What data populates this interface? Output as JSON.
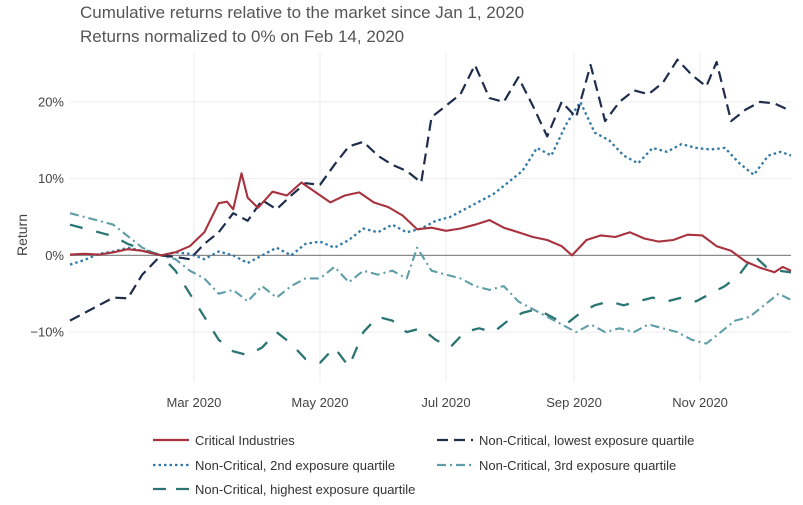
{
  "chart_data": {
    "type": "line",
    "title": "Cumulative returns relative to the market since Jan 1, 2020",
    "subtitle": "Returns normalized to 0% on Feb 14, 2020",
    "xlabel": "",
    "ylabel": "Return",
    "x_range": [
      "2020-01-01",
      "2020-12-15"
    ],
    "y_range": [
      -0.165,
      0.265
    ],
    "x_ticks": [
      {
        "date": "2020-03-01",
        "label": "Mar 2020"
      },
      {
        "date": "2020-05-01",
        "label": "May 2020"
      },
      {
        "date": "2020-07-01",
        "label": "Jul 2020"
      },
      {
        "date": "2020-09-01",
        "label": "Sep 2020"
      },
      {
        "date": "2020-11-01",
        "label": "Nov 2020"
      }
    ],
    "y_ticks": [
      {
        "value": -0.1,
        "label": "−10%"
      },
      {
        "value": 0,
        "label": "0%"
      },
      {
        "value": 0.1,
        "label": "10%"
      },
      {
        "value": 0.2,
        "label": "20%"
      }
    ],
    "grid": true,
    "legend_position": "bottom",
    "series": [
      {
        "name": "Critical Industries",
        "color": "#a8323e",
        "dash": "solid",
        "points": [
          [
            "2020-01-01",
            0.001
          ],
          [
            "2020-01-08",
            0.002
          ],
          [
            "2020-01-15",
            0.001
          ],
          [
            "2020-01-22",
            0.004
          ],
          [
            "2020-01-29",
            0.008
          ],
          [
            "2020-02-05",
            0.006
          ],
          [
            "2020-02-14",
            0.0
          ],
          [
            "2020-02-21",
            0.004
          ],
          [
            "2020-02-28",
            0.012
          ],
          [
            "2020-03-06",
            0.03
          ],
          [
            "2020-03-13",
            0.068
          ],
          [
            "2020-03-17",
            0.07
          ],
          [
            "2020-03-20",
            0.06
          ],
          [
            "2020-03-24",
            0.107
          ],
          [
            "2020-03-27",
            0.075
          ],
          [
            "2020-04-01",
            0.062
          ],
          [
            "2020-04-08",
            0.083
          ],
          [
            "2020-04-15",
            0.078
          ],
          [
            "2020-04-22",
            0.095
          ],
          [
            "2020-04-29",
            0.082
          ],
          [
            "2020-05-06",
            0.069
          ],
          [
            "2020-05-13",
            0.078
          ],
          [
            "2020-05-20",
            0.082
          ],
          [
            "2020-05-27",
            0.069
          ],
          [
            "2020-06-03",
            0.063
          ],
          [
            "2020-06-10",
            0.052
          ],
          [
            "2020-06-17",
            0.034
          ],
          [
            "2020-06-24",
            0.036
          ],
          [
            "2020-07-01",
            0.032
          ],
          [
            "2020-07-08",
            0.035
          ],
          [
            "2020-07-15",
            0.04
          ],
          [
            "2020-07-22",
            0.046
          ],
          [
            "2020-07-29",
            0.036
          ],
          [
            "2020-08-05",
            0.03
          ],
          [
            "2020-08-12",
            0.024
          ],
          [
            "2020-08-19",
            0.02
          ],
          [
            "2020-08-26",
            0.012
          ],
          [
            "2020-08-31",
            0.0
          ],
          [
            "2020-09-07",
            0.02
          ],
          [
            "2020-09-14",
            0.026
          ],
          [
            "2020-09-21",
            0.024
          ],
          [
            "2020-09-28",
            0.03
          ],
          [
            "2020-10-05",
            0.022
          ],
          [
            "2020-10-12",
            0.018
          ],
          [
            "2020-10-19",
            0.02
          ],
          [
            "2020-10-26",
            0.027
          ],
          [
            "2020-11-02",
            0.026
          ],
          [
            "2020-11-09",
            0.012
          ],
          [
            "2020-11-16",
            0.006
          ],
          [
            "2020-11-23",
            -0.008
          ],
          [
            "2020-11-30",
            -0.016
          ],
          [
            "2020-12-07",
            -0.022
          ],
          [
            "2020-12-11",
            -0.015
          ],
          [
            "2020-12-15",
            -0.02
          ]
        ]
      },
      {
        "name": "Non-Critical, lowest exposure quartile",
        "color": "#1f2d4d",
        "dash": "long-dash",
        "points": [
          [
            "2020-01-01",
            -0.085
          ],
          [
            "2020-01-08",
            -0.075
          ],
          [
            "2020-01-15",
            -0.065
          ],
          [
            "2020-01-22",
            -0.055
          ],
          [
            "2020-01-29",
            -0.056
          ],
          [
            "2020-02-05",
            -0.025
          ],
          [
            "2020-02-14",
            0.0
          ],
          [
            "2020-02-21",
            -0.002
          ],
          [
            "2020-02-28",
            -0.005
          ],
          [
            "2020-03-06",
            0.015
          ],
          [
            "2020-03-13",
            0.03
          ],
          [
            "2020-03-20",
            0.055
          ],
          [
            "2020-03-27",
            0.045
          ],
          [
            "2020-04-03",
            0.072
          ],
          [
            "2020-04-10",
            0.06
          ],
          [
            "2020-04-17",
            0.078
          ],
          [
            "2020-04-24",
            0.094
          ],
          [
            "2020-05-01",
            0.092
          ],
          [
            "2020-05-08",
            0.118
          ],
          [
            "2020-05-15",
            0.142
          ],
          [
            "2020-05-22",
            0.148
          ],
          [
            "2020-05-29",
            0.13
          ],
          [
            "2020-06-05",
            0.118
          ],
          [
            "2020-06-12",
            0.11
          ],
          [
            "2020-06-19",
            0.095
          ],
          [
            "2020-06-24",
            0.18
          ],
          [
            "2020-07-01",
            0.195
          ],
          [
            "2020-07-08",
            0.21
          ],
          [
            "2020-07-15",
            0.248
          ],
          [
            "2020-07-22",
            0.205
          ],
          [
            "2020-07-29",
            0.2
          ],
          [
            "2020-08-05",
            0.232
          ],
          [
            "2020-08-12",
            0.195
          ],
          [
            "2020-08-19",
            0.155
          ],
          [
            "2020-08-26",
            0.2
          ],
          [
            "2020-09-02",
            0.18
          ],
          [
            "2020-09-09",
            0.248
          ],
          [
            "2020-09-16",
            0.175
          ],
          [
            "2020-09-23",
            0.2
          ],
          [
            "2020-09-30",
            0.215
          ],
          [
            "2020-10-07",
            0.21
          ],
          [
            "2020-10-14",
            0.225
          ],
          [
            "2020-10-21",
            0.255
          ],
          [
            "2020-10-28",
            0.235
          ],
          [
            "2020-11-04",
            0.22
          ],
          [
            "2020-11-09",
            0.252
          ],
          [
            "2020-11-16",
            0.175
          ],
          [
            "2020-11-23",
            0.19
          ],
          [
            "2020-11-30",
            0.2
          ],
          [
            "2020-12-07",
            0.198
          ],
          [
            "2020-12-15",
            0.188
          ]
        ]
      },
      {
        "name": "Non-Critical, 2nd exposure quartile",
        "color": "#2f79a6",
        "dash": "dotted",
        "points": [
          [
            "2020-01-01",
            -0.012
          ],
          [
            "2020-01-08",
            -0.006
          ],
          [
            "2020-01-15",
            0.002
          ],
          [
            "2020-01-22",
            0.005
          ],
          [
            "2020-01-29",
            0.01
          ],
          [
            "2020-02-05",
            0.006
          ],
          [
            "2020-02-14",
            0.0
          ],
          [
            "2020-02-21",
            0.004
          ],
          [
            "2020-02-28",
            0.002
          ],
          [
            "2020-03-06",
            -0.005
          ],
          [
            "2020-03-13",
            0.005
          ],
          [
            "2020-03-20",
            0.0
          ],
          [
            "2020-03-27",
            -0.01
          ],
          [
            "2020-04-03",
            0.0
          ],
          [
            "2020-04-10",
            0.01
          ],
          [
            "2020-04-17",
            0.0
          ],
          [
            "2020-04-24",
            0.015
          ],
          [
            "2020-05-01",
            0.018
          ],
          [
            "2020-05-08",
            0.01
          ],
          [
            "2020-05-15",
            0.02
          ],
          [
            "2020-05-22",
            0.035
          ],
          [
            "2020-05-29",
            0.03
          ],
          [
            "2020-06-05",
            0.04
          ],
          [
            "2020-06-12",
            0.03
          ],
          [
            "2020-06-19",
            0.035
          ],
          [
            "2020-06-26",
            0.045
          ],
          [
            "2020-07-03",
            0.05
          ],
          [
            "2020-07-10",
            0.06
          ],
          [
            "2020-07-17",
            0.07
          ],
          [
            "2020-07-24",
            0.08
          ],
          [
            "2020-07-31",
            0.095
          ],
          [
            "2020-08-07",
            0.11
          ],
          [
            "2020-08-14",
            0.14
          ],
          [
            "2020-08-21",
            0.13
          ],
          [
            "2020-08-28",
            0.17
          ],
          [
            "2020-09-04",
            0.2
          ],
          [
            "2020-09-11",
            0.16
          ],
          [
            "2020-09-18",
            0.15
          ],
          [
            "2020-09-25",
            0.13
          ],
          [
            "2020-10-02",
            0.12
          ],
          [
            "2020-10-09",
            0.14
          ],
          [
            "2020-10-16",
            0.135
          ],
          [
            "2020-10-23",
            0.145
          ],
          [
            "2020-10-30",
            0.14
          ],
          [
            "2020-11-06",
            0.138
          ],
          [
            "2020-11-13",
            0.14
          ],
          [
            "2020-11-20",
            0.12
          ],
          [
            "2020-11-27",
            0.105
          ],
          [
            "2020-12-04",
            0.13
          ],
          [
            "2020-12-10",
            0.135
          ],
          [
            "2020-12-15",
            0.13
          ]
        ]
      },
      {
        "name": "Non-Critical, 3rd exposure quartile",
        "color": "#5f9ea8",
        "dash": "dash-dot",
        "points": [
          [
            "2020-01-01",
            0.055
          ],
          [
            "2020-01-08",
            0.05
          ],
          [
            "2020-01-15",
            0.045
          ],
          [
            "2020-01-22",
            0.04
          ],
          [
            "2020-01-29",
            0.025
          ],
          [
            "2020-02-05",
            0.01
          ],
          [
            "2020-02-14",
            0.0
          ],
          [
            "2020-02-21",
            -0.005
          ],
          [
            "2020-02-28",
            -0.02
          ],
          [
            "2020-03-06",
            -0.03
          ],
          [
            "2020-03-13",
            -0.05
          ],
          [
            "2020-03-20",
            -0.045
          ],
          [
            "2020-03-27",
            -0.06
          ],
          [
            "2020-04-03",
            -0.04
          ],
          [
            "2020-04-10",
            -0.055
          ],
          [
            "2020-04-17",
            -0.04
          ],
          [
            "2020-04-24",
            -0.03
          ],
          [
            "2020-05-01",
            -0.03
          ],
          [
            "2020-05-08",
            -0.015
          ],
          [
            "2020-05-15",
            -0.035
          ],
          [
            "2020-05-22",
            -0.02
          ],
          [
            "2020-05-29",
            -0.025
          ],
          [
            "2020-06-05",
            -0.02
          ],
          [
            "2020-06-12",
            -0.03
          ],
          [
            "2020-06-17",
            0.01
          ],
          [
            "2020-06-24",
            -0.02
          ],
          [
            "2020-07-01",
            -0.025
          ],
          [
            "2020-07-08",
            -0.03
          ],
          [
            "2020-07-15",
            -0.04
          ],
          [
            "2020-07-22",
            -0.045
          ],
          [
            "2020-07-29",
            -0.04
          ],
          [
            "2020-08-05",
            -0.06
          ],
          [
            "2020-08-12",
            -0.07
          ],
          [
            "2020-08-19",
            -0.08
          ],
          [
            "2020-08-26",
            -0.09
          ],
          [
            "2020-09-02",
            -0.1
          ],
          [
            "2020-09-09",
            -0.09
          ],
          [
            "2020-09-16",
            -0.1
          ],
          [
            "2020-09-23",
            -0.095
          ],
          [
            "2020-09-30",
            -0.1
          ],
          [
            "2020-10-07",
            -0.09
          ],
          [
            "2020-10-14",
            -0.095
          ],
          [
            "2020-10-21",
            -0.1
          ],
          [
            "2020-10-28",
            -0.11
          ],
          [
            "2020-11-04",
            -0.115
          ],
          [
            "2020-11-11",
            -0.1
          ],
          [
            "2020-11-18",
            -0.085
          ],
          [
            "2020-11-25",
            -0.08
          ],
          [
            "2020-12-02",
            -0.065
          ],
          [
            "2020-12-09",
            -0.05
          ],
          [
            "2020-12-15",
            -0.058
          ]
        ]
      },
      {
        "name": "Non-Critical, highest exposure quartile",
        "color": "#2a7572",
        "dash": "wide-dash",
        "points": [
          [
            "2020-01-01",
            0.04
          ],
          [
            "2020-01-08",
            0.035
          ],
          [
            "2020-01-15",
            0.03
          ],
          [
            "2020-01-22",
            0.025
          ],
          [
            "2020-01-29",
            0.015
          ],
          [
            "2020-02-05",
            0.008
          ],
          [
            "2020-02-14",
            0.0
          ],
          [
            "2020-02-21",
            -0.02
          ],
          [
            "2020-02-28",
            -0.05
          ],
          [
            "2020-03-06",
            -0.08
          ],
          [
            "2020-03-13",
            -0.11
          ],
          [
            "2020-03-20",
            -0.125
          ],
          [
            "2020-03-27",
            -0.13
          ],
          [
            "2020-04-03",
            -0.12
          ],
          [
            "2020-04-10",
            -0.1
          ],
          [
            "2020-04-17",
            -0.115
          ],
          [
            "2020-04-24",
            -0.135
          ],
          [
            "2020-05-01",
            -0.14
          ],
          [
            "2020-05-08",
            -0.12
          ],
          [
            "2020-05-15",
            -0.145
          ],
          [
            "2020-05-22",
            -0.1
          ],
          [
            "2020-05-29",
            -0.08
          ],
          [
            "2020-06-05",
            -0.085
          ],
          [
            "2020-06-12",
            -0.1
          ],
          [
            "2020-06-19",
            -0.095
          ],
          [
            "2020-06-26",
            -0.11
          ],
          [
            "2020-07-03",
            -0.12
          ],
          [
            "2020-07-10",
            -0.1
          ],
          [
            "2020-07-17",
            -0.095
          ],
          [
            "2020-07-24",
            -0.1
          ],
          [
            "2020-07-31",
            -0.085
          ],
          [
            "2020-08-07",
            -0.075
          ],
          [
            "2020-08-14",
            -0.07
          ],
          [
            "2020-08-21",
            -0.08
          ],
          [
            "2020-08-28",
            -0.09
          ],
          [
            "2020-09-04",
            -0.075
          ],
          [
            "2020-09-11",
            -0.065
          ],
          [
            "2020-09-18",
            -0.06
          ],
          [
            "2020-09-25",
            -0.065
          ],
          [
            "2020-10-02",
            -0.06
          ],
          [
            "2020-10-09",
            -0.055
          ],
          [
            "2020-10-16",
            -0.06
          ],
          [
            "2020-10-23",
            -0.055
          ],
          [
            "2020-10-30",
            -0.06
          ],
          [
            "2020-11-06",
            -0.05
          ],
          [
            "2020-11-13",
            -0.04
          ],
          [
            "2020-11-20",
            -0.025
          ],
          [
            "2020-11-27",
            0.0
          ],
          [
            "2020-12-03",
            -0.015
          ],
          [
            "2020-12-09",
            -0.02
          ],
          [
            "2020-12-15",
            -0.022
          ]
        ]
      }
    ]
  }
}
